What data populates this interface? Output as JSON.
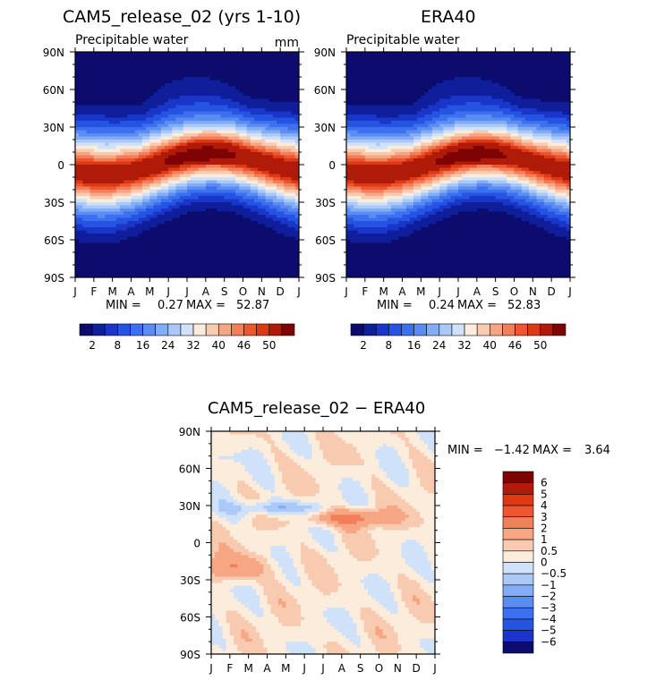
{
  "chart_data": [
    {
      "type": "heatmap",
      "title": "CAM5_release_02 (yrs 1-10)",
      "subtitle": "Precipitable water",
      "units": "mm",
      "x_ticks": [
        "J",
        "F",
        "M",
        "A",
        "M",
        "J",
        "J",
        "A",
        "S",
        "O",
        "N",
        "D",
        "J"
      ],
      "y_ticks": [
        "90N",
        "60N",
        "30N",
        "0",
        "30S",
        "60S",
        "90S"
      ],
      "xlim": [
        0,
        12
      ],
      "ylim": [
        -90,
        90
      ],
      "min_label": "MIN =",
      "min_value": "0.27",
      "max_label": "MAX =",
      "max_value": "52.87",
      "model_params": {
        "peak": 52.87,
        "floor": 0.27,
        "itcz_amp": 8,
        "north_amp": 7
      }
    },
    {
      "type": "heatmap",
      "title": "ERA40",
      "subtitle": "Precipitable water",
      "x_ticks": [
        "J",
        "F",
        "M",
        "A",
        "M",
        "J",
        "J",
        "A",
        "S",
        "O",
        "N",
        "D",
        "J"
      ],
      "y_ticks": [
        "90N",
        "60N",
        "30N",
        "0",
        "30S",
        "60S",
        "90S"
      ],
      "xlim": [
        0,
        12
      ],
      "ylim": [
        -90,
        90
      ],
      "min_label": "MIN =",
      "min_value": "0.24",
      "max_label": "MAX =",
      "max_value": "52.83",
      "model_params": {
        "peak": 52.83,
        "floor": 0.24,
        "itcz_amp": 8,
        "north_amp": 7
      }
    },
    {
      "type": "heatmap",
      "title": "CAM5_release_02 − ERA40",
      "x_ticks": [
        "J",
        "F",
        "M",
        "A",
        "M",
        "J",
        "J",
        "A",
        "S",
        "O",
        "N",
        "D",
        "J"
      ],
      "y_ticks": [
        "90N",
        "60N",
        "30N",
        "0",
        "30S",
        "60S",
        "90S"
      ],
      "xlim": [
        0,
        12
      ],
      "ylim": [
        -90,
        90
      ],
      "min_label": "MIN =",
      "min_value": "−1.42",
      "max_label": "MAX =",
      "max_value": "3.64"
    }
  ],
  "colorbars": {
    "abs": {
      "orientation": "horizontal",
      "levels": [
        0,
        2,
        5,
        8,
        12,
        16,
        20,
        24,
        28,
        32,
        36,
        40,
        43,
        46,
        48,
        50,
        55
      ],
      "tick_labels": [
        "2",
        "8",
        "16",
        "24",
        "32",
        "40",
        "46",
        "50"
      ],
      "colors": [
        "#0c0c6e",
        "#0f1f9c",
        "#1a36c8",
        "#2554e2",
        "#3d70ee",
        "#5a8cf2",
        "#83acf6",
        "#aac8f8",
        "#d0e2fa",
        "#fcecdc",
        "#f8cbb0",
        "#f6a682",
        "#f37e5a",
        "#ee5530",
        "#dc3a14",
        "#b01a08",
        "#7e0404"
      ]
    },
    "diff": {
      "orientation": "vertical",
      "tick_labels": [
        "6",
        "5",
        "4",
        "3",
        "2",
        "1",
        "0.5",
        "0",
        "−0.5",
        "−1",
        "−2",
        "−3",
        "−4",
        "−5",
        "−6"
      ],
      "colors": [
        "#7e0404",
        "#b01a08",
        "#dc3a14",
        "#ee5530",
        "#f37e5a",
        "#f6a682",
        "#f8cbb0",
        "#fcecdc",
        "#d0e2fa",
        "#aac8f8",
        "#83acf6",
        "#5a8cf2",
        "#3d70ee",
        "#2554e2",
        "#1a36c8",
        "#0c0c6e"
      ]
    }
  }
}
